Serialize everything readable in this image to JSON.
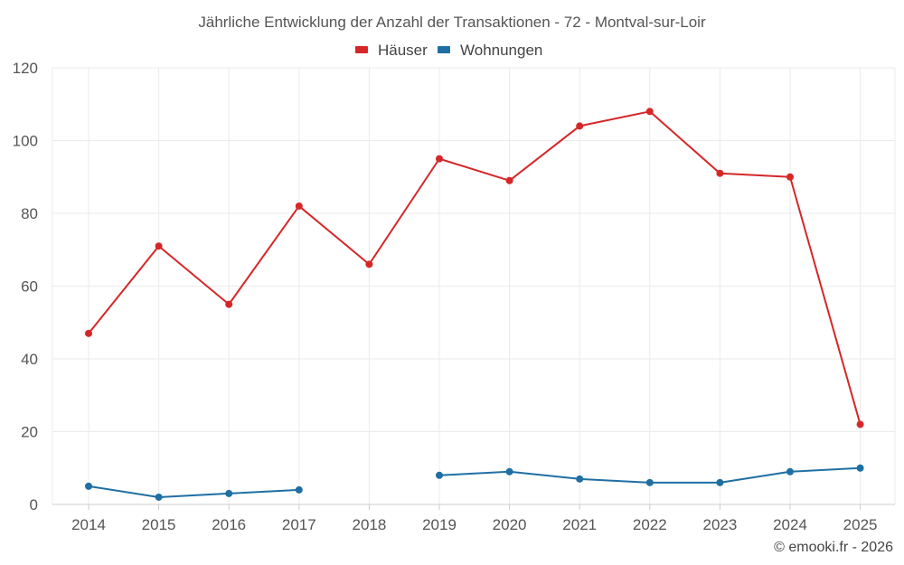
{
  "chart_data": {
    "type": "line",
    "title": "Jährliche Entwicklung der Anzahl der Transaktionen - 72 - Montval-sur-Loir",
    "categories": [
      "2014",
      "2015",
      "2016",
      "2017",
      "2018",
      "2019",
      "2020",
      "2021",
      "2022",
      "2023",
      "2024",
      "2025"
    ],
    "y_ticks": [
      "0",
      "20",
      "40",
      "60",
      "80",
      "100",
      "120"
    ],
    "ylim": [
      0,
      120
    ],
    "grid": true,
    "legend_position": "top-center",
    "series": [
      {
        "name": "Häuser",
        "color": "#d62728",
        "values": [
          47,
          71,
          55,
          82,
          66,
          95,
          89,
          104,
          108,
          91,
          90,
          22
        ]
      },
      {
        "name": "Wohnungen",
        "color": "#1f6fa3",
        "values": [
          5,
          2,
          3,
          4,
          null,
          8,
          9,
          7,
          6,
          6,
          9,
          10
        ]
      }
    ],
    "credit": "© emooki.fr - 2026"
  }
}
